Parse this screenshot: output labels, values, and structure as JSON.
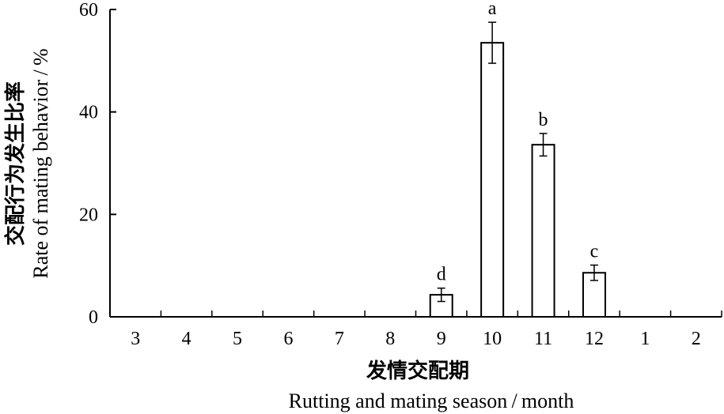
{
  "chart_data": {
    "type": "bar",
    "categories": [
      "3",
      "4",
      "5",
      "6",
      "7",
      "8",
      "9",
      "10",
      "11",
      "12",
      "1",
      "2"
    ],
    "values": [
      0,
      0,
      0,
      0,
      0,
      0,
      4.3,
      53.5,
      33.6,
      8.6,
      0,
      0
    ],
    "errors": [
      0,
      0,
      0,
      0,
      0,
      0,
      1.3,
      4.0,
      2.2,
      1.5,
      0,
      0
    ],
    "significance": [
      "",
      "",
      "",
      "",
      "",
      "",
      "d",
      "a",
      "b",
      "c",
      "",
      ""
    ],
    "xlabel_cn": "发情交配期",
    "xlabel_en": "Rutting and mating season / month",
    "ylabel_cn": "交配行为发生比率",
    "ylabel_en": "Rate of mating behavior / %",
    "ylim": [
      0,
      60
    ],
    "yticks": [
      0,
      20,
      40,
      60
    ],
    "grid": false,
    "colors": {
      "bar_fill": "#ffffff",
      "stroke": "#000000"
    }
  }
}
